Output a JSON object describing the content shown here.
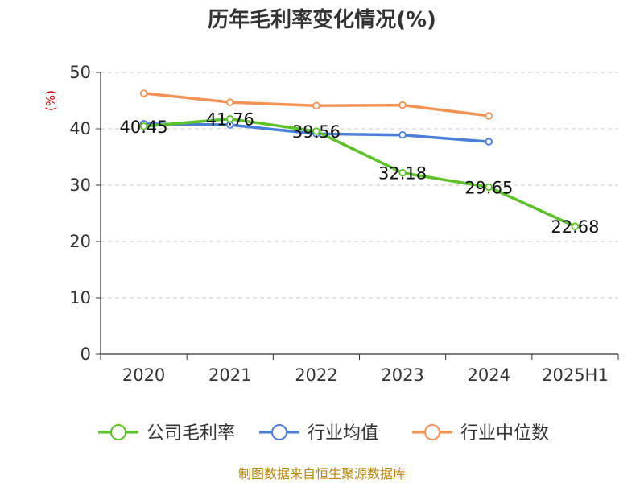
{
  "chart_data": {
    "type": "line",
    "title": "历年毛利率变化情况(%)",
    "ylabel": "(%)",
    "ylim": [
      0,
      50
    ],
    "yticks": [
      "0",
      "10",
      "20",
      "30",
      "40",
      "50"
    ],
    "categories": [
      "2020",
      "2021",
      "2022",
      "2023",
      "2024",
      "2025H1"
    ],
    "grid": true,
    "legend_position": "bottom",
    "series": [
      {
        "name": "公司毛利率",
        "color": "#5cc227",
        "values": [
          40.45,
          41.76,
          39.56,
          32.18,
          29.65,
          22.68
        ],
        "labels": [
          "40.45",
          "41.76",
          "39.56",
          "32.18",
          "29.65",
          "22.68"
        ]
      },
      {
        "name": "行业均值",
        "color": "#4a7fd8",
        "values": [
          40.9,
          40.7,
          39.1,
          38.9,
          37.7,
          null
        ],
        "labels": []
      },
      {
        "name": "行业中位数",
        "color": "#f39255",
        "values": [
          46.3,
          44.7,
          44.1,
          44.2,
          42.3,
          null
        ],
        "labels": []
      }
    ]
  },
  "source": "制图数据来自恒生聚源数据库"
}
